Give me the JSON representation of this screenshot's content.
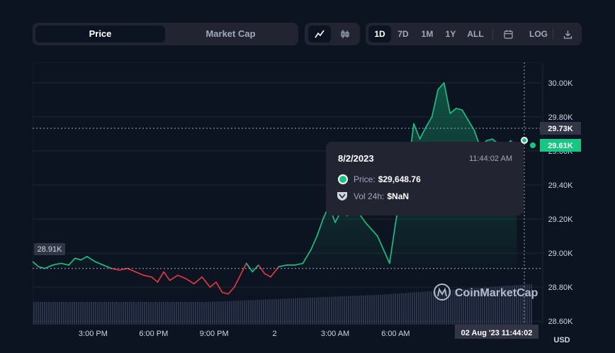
{
  "toolbar": {
    "view_options": [
      "Price",
      "Market Cap"
    ],
    "active_view": "Price",
    "chart_style_icons": [
      "line-chart-icon",
      "candlestick-icon"
    ],
    "ranges": [
      "1D",
      "7D",
      "1M",
      "1Y",
      "ALL"
    ],
    "active_range": "1D",
    "calendar_icon": "calendar-icon",
    "log_label": "LOG",
    "download_icon": "download-icon"
  },
  "tooltip": {
    "date": "8/2/2023",
    "time": "11:44:02 AM",
    "price_label": "Price:",
    "price_value": "$29,648.76",
    "vol_label": "Vol 24h:",
    "vol_value": "$NaN"
  },
  "markers": {
    "crosshair_price": "29.73K",
    "current_price": "29.61K",
    "open_price": "28.91K",
    "crosshair_time": "02 Aug '23 11:44:02"
  },
  "watermark": "CoinMarketCap",
  "currency": "USD",
  "colors": {
    "up": "#16c784",
    "down": "#ea3943",
    "background": "#0d1421",
    "volume": "#4b5a7e"
  },
  "chart_data": {
    "type": "line",
    "xlabel": "",
    "ylabel": "",
    "x_ticks": [
      "3:00 PM",
      "6:00 PM",
      "9:00 PM",
      "2",
      "3:00 AM",
      "6:00 AM"
    ],
    "y_ticks": [
      "30.00K",
      "29.80K",
      "29.60K",
      "29.40K",
      "29.20K",
      "29.00K",
      "28.80K",
      "28.60K"
    ],
    "ylim": [
      28.58,
      30.12
    ],
    "baseline": 28.91,
    "grid": true,
    "series": [
      {
        "x_hours": [
          0,
          0.3,
          0.6,
          1.0,
          1.4,
          1.8,
          2.1,
          2.4,
          2.7,
          3.1,
          3.5,
          3.9,
          4.3,
          4.7,
          5.1,
          5.5,
          5.9,
          6.2,
          6.5,
          6.8,
          7.2,
          7.6,
          8.0,
          8.4,
          8.8,
          9.1,
          9.4,
          9.7,
          10.0,
          10.3,
          10.6,
          10.9,
          11.2,
          11.5,
          11.8,
          12.2,
          12.6,
          13.0,
          13.4,
          13.8,
          14.1,
          14.4,
          14.7,
          15.0,
          15.3,
          15.6,
          15.9,
          16.2,
          16.5,
          16.8,
          17.1,
          17.4,
          17.7,
          18.0,
          18.3,
          18.6,
          18.9,
          19.2,
          19.5,
          19.8,
          20.1,
          20.4,
          20.7,
          21.0,
          21.3,
          21.6,
          21.9,
          22.2,
          22.5,
          22.8,
          23.1,
          23.4,
          23.7,
          24.0
        ],
        "values": [
          28.95,
          28.92,
          28.91,
          28.93,
          28.94,
          28.93,
          28.97,
          28.96,
          28.98,
          28.95,
          28.93,
          28.91,
          28.9,
          28.91,
          28.89,
          28.87,
          28.86,
          28.83,
          28.89,
          28.84,
          28.87,
          28.85,
          28.82,
          28.86,
          28.8,
          28.83,
          28.77,
          28.76,
          28.8,
          28.87,
          28.94,
          28.89,
          28.93,
          28.88,
          28.86,
          28.92,
          28.93,
          28.93,
          28.94,
          29.02,
          29.1,
          29.2,
          29.28,
          29.18,
          29.25,
          29.22,
          29.26,
          29.23,
          29.18,
          29.14,
          29.1,
          29.02,
          28.94,
          29.18,
          29.39,
          29.48,
          29.76,
          29.67,
          29.74,
          29.8,
          29.96,
          30.0,
          29.82,
          29.85,
          29.84,
          29.78,
          29.72,
          29.62,
          29.66,
          29.67,
          29.64,
          29.62,
          29.66,
          29.61
        ]
      }
    ]
  }
}
